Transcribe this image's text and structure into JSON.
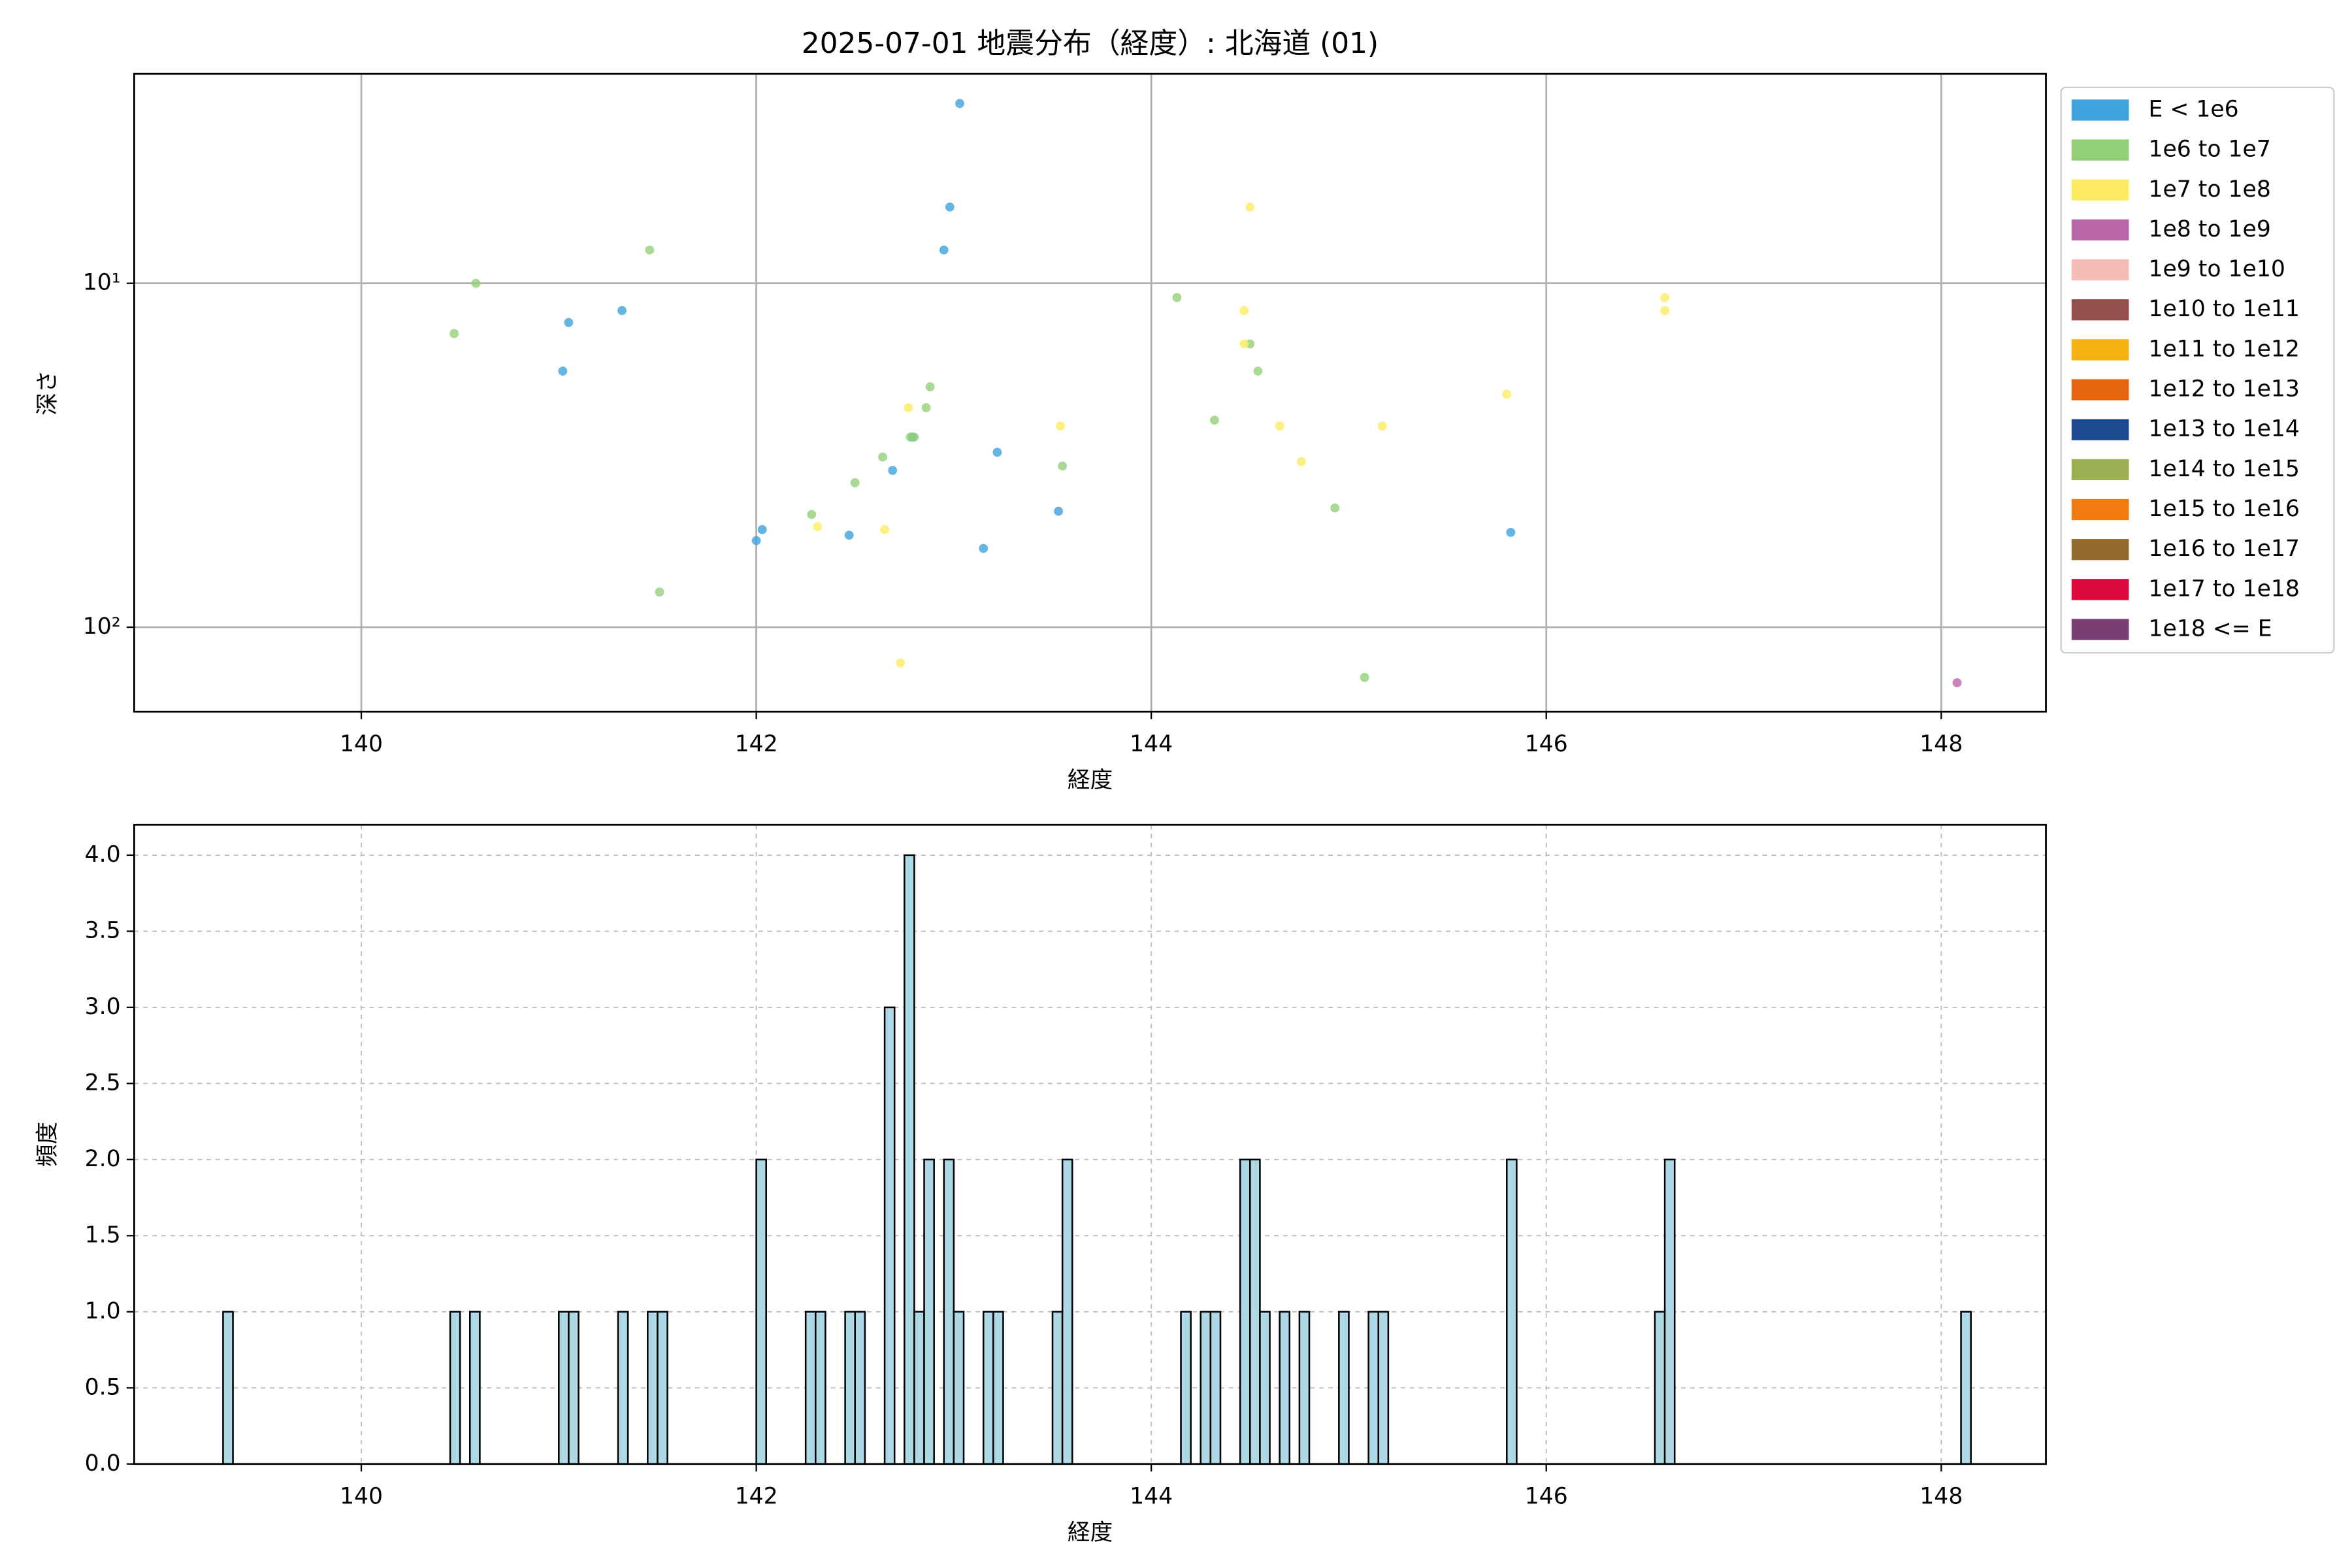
{
  "chart_data": [
    {
      "type": "scatter",
      "title": "2025-07-01 地震分布（経度）: 北海道 (01)",
      "xlabel": "経度",
      "ylabel": "深さ",
      "xlim": [
        138.85,
        148.53
      ],
      "xticks": [
        140,
        142,
        144,
        146,
        148
      ],
      "ylim": [
        176,
        2.46
      ],
      "yscale": "log",
      "yticks": [
        {
          "value": 10,
          "label": "10¹"
        },
        {
          "value": 100,
          "label": "10²"
        }
      ],
      "grid": true,
      "legend": "outside-right",
      "series": [
        {
          "name": "E < 1e6",
          "color": "#3ea3dd",
          "x": [
            143.03,
            142.98,
            142.95,
            141.32,
            141.05,
            141.02,
            142.79,
            142.69,
            143.22,
            142.03,
            142.0,
            142.47,
            143.15,
            143.53,
            145.82
          ],
          "values": [
            3,
            6,
            8,
            12,
            13,
            18,
            28,
            35,
            31,
            52,
            56,
            54,
            59,
            46,
            53
          ]
        },
        {
          "name": "1e6 to 1e7",
          "color": "#93cf77",
          "x": [
            140.58,
            140.47,
            141.46,
            141.51,
            142.28,
            142.5,
            142.64,
            142.78,
            142.8,
            142.88,
            142.86,
            143.55,
            144.13,
            144.32,
            144.5,
            144.54,
            144.93,
            145.08
          ],
          "values": [
            10,
            14,
            8,
            79,
            47,
            38,
            32,
            28,
            28,
            20,
            23,
            34,
            11,
            25,
            15,
            18,
            45,
            140
          ]
        },
        {
          "name": "1e7 to 1e8",
          "color": "#fdec61",
          "x": [
            144.5,
            144.47,
            144.47,
            146.6,
            146.6,
            142.77,
            142.31,
            142.65,
            142.73,
            143.54,
            144.65,
            144.76,
            145.17,
            145.8
          ],
          "values": [
            6,
            12,
            15,
            11,
            12,
            23,
            51,
            52,
            127,
            26,
            26,
            33,
            26,
            21
          ]
        },
        {
          "name": "1e8 to 1e9",
          "color": "#b966a8",
          "x": [
            148.08
          ],
          "values": [
            145
          ]
        },
        {
          "name": "1e9 to 1e10",
          "color": "#f5bcb8",
          "x": [],
          "values": []
        },
        {
          "name": "1e10 to 1e11",
          "color": "#954f4b",
          "x": [],
          "values": []
        },
        {
          "name": "1e11 to 1e12",
          "color": "#f7b012",
          "x": [],
          "values": []
        },
        {
          "name": "1e12 to 1e13",
          "color": "#e8650f",
          "x": [],
          "values": []
        },
        {
          "name": "1e13 to 1e14",
          "color": "#1c4a91",
          "x": [],
          "values": []
        },
        {
          "name": "1e14 to 1e15",
          "color": "#9cae52",
          "x": [],
          "values": []
        },
        {
          "name": "1e15 to 1e16",
          "color": "#f07c10",
          "x": [],
          "values": []
        },
        {
          "name": "1e16 to 1e17",
          "color": "#946b2d",
          "x": [],
          "values": []
        },
        {
          "name": "1e17 to 1e18",
          "color": "#dc0a3c",
          "x": [],
          "values": []
        },
        {
          "name": "1e18 <= E",
          "color": "#7b3e72",
          "x": [],
          "values": []
        }
      ]
    },
    {
      "type": "histogram",
      "xlabel": "経度",
      "ylabel": "頻度",
      "color": "#add8e6",
      "edgecolor": "#000000",
      "xlim": [
        138.85,
        148.53
      ],
      "xticks": [
        140,
        142,
        144,
        146,
        148
      ],
      "ylim": [
        0,
        4.2
      ],
      "grid": "dashed",
      "yticks": [
        {
          "value": 0,
          "label": "0.0"
        },
        {
          "value": 0.5,
          "label": "0.5"
        },
        {
          "value": 1,
          "label": "1.0"
        },
        {
          "value": 1.5,
          "label": "1.5"
        },
        {
          "value": 2,
          "label": "2.0"
        },
        {
          "value": 2.5,
          "label": "2.5"
        },
        {
          "value": 3,
          "label": "3.0"
        },
        {
          "value": 3.5,
          "label": "3.5"
        },
        {
          "value": 4,
          "label": "4.0"
        }
      ],
      "bins": [
        139.3,
        139.35,
        139.4,
        139.45,
        139.5,
        139.55,
        139.6,
        139.65,
        139.7,
        139.75,
        139.8,
        139.85,
        139.9,
        139.95,
        140,
        140.05,
        140.1,
        140.15,
        140.2,
        140.25,
        140.3,
        140.35,
        140.4,
        140.45,
        140.5,
        140.55,
        140.6,
        140.65,
        140.7,
        140.75,
        140.8,
        140.85,
        140.9,
        140.95,
        141,
        141.05,
        141.1,
        141.15,
        141.2,
        141.25,
        141.3,
        141.35,
        141.4,
        141.45,
        141.5,
        141.55,
        141.6,
        141.65,
        141.7,
        141.75,
        141.8,
        141.85,
        141.9,
        141.95,
        142,
        142.05,
        142.1,
        142.15,
        142.2,
        142.25,
        142.3,
        142.35,
        142.4,
        142.45,
        142.5,
        142.55,
        142.6,
        142.65,
        142.7,
        142.75,
        142.8,
        142.85,
        142.9,
        142.95,
        143,
        143.05,
        143.1,
        143.15,
        143.2,
        143.25,
        143.3,
        143.35,
        143.4,
        143.45,
        143.5,
        143.55,
        143.6,
        143.65,
        143.7,
        143.75,
        143.8,
        143.85,
        143.9,
        143.95,
        144,
        144.05,
        144.1,
        144.15,
        144.2,
        144.25,
        144.3,
        144.35,
        144.4,
        144.45,
        144.5,
        144.55,
        144.6,
        144.65,
        144.7,
        144.75,
        144.8,
        144.85,
        144.9,
        144.95,
        145,
        145.05,
        145.1,
        145.15,
        145.2,
        145.25,
        145.3,
        145.35,
        145.4,
        145.45,
        145.5,
        145.55,
        145.6,
        145.65,
        145.7,
        145.75,
        145.8,
        145.85,
        145.9,
        145.95,
        146,
        146.05,
        146.1,
        146.15,
        146.2,
        146.25,
        146.3,
        146.35,
        146.4,
        146.45,
        146.5,
        146.55,
        146.6,
        146.65,
        146.7,
        146.75,
        146.8,
        146.85,
        146.9,
        146.95,
        147,
        147.05,
        147.1,
        147.15,
        147.2,
        147.25,
        147.3,
        147.35,
        147.4,
        147.45,
        147.5,
        147.55,
        147.6,
        147.65,
        147.7,
        147.75,
        147.8,
        147.85,
        147.9,
        147.95,
        148,
        148.05,
        148.1,
        148.15
      ],
      "values": [
        1,
        0,
        0,
        0,
        0,
        0,
        0,
        0,
        0,
        0,
        0,
        0,
        0,
        0,
        0,
        0,
        0,
        0,
        0,
        0,
        0,
        0,
        0,
        1,
        0,
        1,
        0,
        0,
        0,
        0,
        0,
        0,
        0,
        0,
        1,
        1,
        0,
        0,
        0,
        0,
        1,
        0,
        0,
        1,
        1,
        0,
        0,
        0,
        0,
        0,
        0,
        0,
        0,
        0,
        2,
        0,
        0,
        0,
        0,
        1,
        1,
        0,
        0,
        1,
        1,
        0,
        0,
        3,
        0,
        4,
        1,
        2,
        0,
        2,
        1,
        0,
        0,
        1,
        1,
        0,
        0,
        0,
        0,
        0,
        1,
        2,
        0,
        0,
        0,
        0,
        0,
        0,
        0,
        0,
        0,
        0,
        0,
        1,
        0,
        1,
        1,
        0,
        0,
        2,
        2,
        1,
        0,
        1,
        0,
        1,
        0,
        0,
        0,
        1,
        0,
        0,
        1,
        1,
        0,
        0,
        0,
        0,
        0,
        0,
        0,
        0,
        0,
        0,
        0,
        0,
        2,
        0,
        0,
        0,
        0,
        0,
        0,
        0,
        0,
        0,
        0,
        0,
        0,
        0,
        0,
        1,
        2,
        0,
        0,
        0,
        0,
        0,
        0,
        0,
        0,
        0,
        0,
        0,
        0,
        0,
        0,
        0,
        0,
        0,
        0,
        0,
        0,
        0,
        0,
        0,
        0,
        0,
        0,
        0,
        0,
        0,
        1
      ]
    }
  ]
}
